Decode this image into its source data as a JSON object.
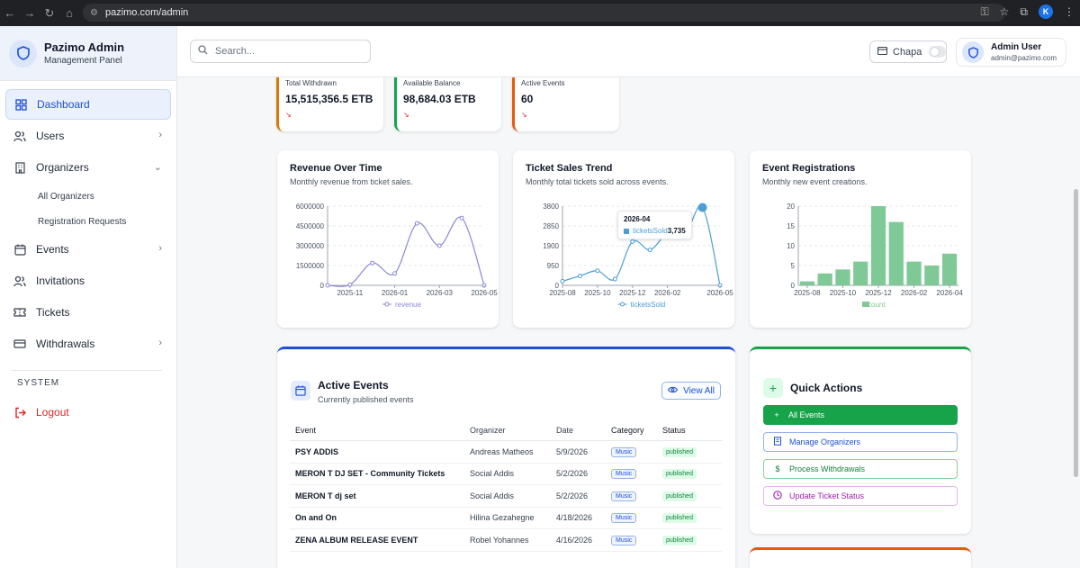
{
  "browser": {
    "url": "pazimo.com/admin",
    "profile_initial": "K"
  },
  "sidebar": {
    "brand_title": "Pazimo Admin",
    "brand_subtitle": "Management Panel",
    "items": [
      {
        "label": "Dashboard",
        "icon": "grid-icon"
      },
      {
        "label": "Users",
        "icon": "users-icon"
      },
      {
        "label": "Organizers",
        "icon": "building-icon"
      },
      {
        "label": "Events",
        "icon": "calendar-icon"
      },
      {
        "label": "Invitations",
        "icon": "user-plus-icon"
      },
      {
        "label": "Tickets",
        "icon": "ticket-icon"
      },
      {
        "label": "Withdrawals",
        "icon": "wallet-icon"
      }
    ],
    "organizer_subitems": [
      "All Organizers",
      "Registration Requests"
    ],
    "system_label": "SYSTEM",
    "logout_label": "Logout"
  },
  "topbar": {
    "search_placeholder": "Search...",
    "chapa_label": "Chapa",
    "user_name": "Admin User",
    "user_email": "admin@pazimo.com"
  },
  "stats": [
    {
      "label": "Total Withdrawn",
      "value": "15,515,356.5 ETB",
      "color": "#d97706"
    },
    {
      "label": "Available Balance",
      "value": "98,684.03 ETB",
      "color": "#16a34a"
    },
    {
      "label": "Active Events",
      "value": "60",
      "color": "#ea580c"
    }
  ],
  "charts": {
    "revenue": {
      "title": "Revenue Over Time",
      "subtitle": "Monthly revenue from ticket sales."
    },
    "tickets": {
      "title": "Ticket Sales Trend",
      "subtitle": "Monthly total tickets sold across events."
    },
    "registrations": {
      "title": "Event Registrations",
      "subtitle": "Monthly new event creations."
    }
  },
  "tooltip": {
    "title": "2026-04",
    "series": "ticketsSold",
    "value": "3,735"
  },
  "chart_data": [
    {
      "type": "line",
      "title": "Revenue Over Time",
      "x": [
        "2025-10",
        "2025-11",
        "2025-12",
        "2026-01",
        "2026-02",
        "2026-03",
        "2026-04",
        "2026-05"
      ],
      "xticks": [
        "2025-11",
        "2026-01",
        "2026-03",
        "2026-05"
      ],
      "yticks": [
        "0",
        "1500000",
        "3000000",
        "4500000",
        "6000000"
      ],
      "ylim": [
        0,
        6000000
      ],
      "series": [
        {
          "name": "revenue",
          "values": [
            0,
            50000,
            1700000,
            900000,
            4700000,
            3000000,
            5100000,
            0
          ]
        }
      ],
      "color": "#8b88d6"
    },
    {
      "type": "line",
      "title": "Ticket Sales Trend",
      "x": [
        "2025-08",
        "2025-09",
        "2025-10",
        "2025-11",
        "2025-12",
        "2026-01",
        "2026-02",
        "2026-03",
        "2026-04",
        "2026-05"
      ],
      "xticks": [
        "2025-08",
        "2025-10",
        "2025-12",
        "2026-02",
        "2026-05"
      ],
      "yticks": [
        "0",
        "950",
        "1900",
        "2850",
        "3800"
      ],
      "ylim": [
        0,
        3800
      ],
      "series": [
        {
          "name": "ticketsSold",
          "values": [
            200,
            450,
            700,
            300,
            2100,
            1700,
            2500,
            2400,
            3735,
            0
          ]
        }
      ],
      "color": "#4b9fd6"
    },
    {
      "type": "bar",
      "title": "Event Registrations",
      "categories": [
        "2025-08",
        "2025-09",
        "2025-10",
        "2025-11",
        "2025-12",
        "2026-01",
        "2026-02",
        "2026-03",
        "2026-04"
      ],
      "xticks": [
        "2025-08",
        "2025-10",
        "2025-12",
        "2026-02",
        "2026-04"
      ],
      "yticks": [
        "0",
        "5",
        "10",
        "15",
        "20"
      ],
      "ylim": [
        0,
        20
      ],
      "series": [
        {
          "name": "count",
          "values": [
            1,
            3,
            4,
            6,
            20,
            16,
            6,
            5,
            8
          ]
        }
      ],
      "color": "#7fc996"
    }
  ],
  "active_events": {
    "title": "Active Events",
    "subtitle": "Currently published events",
    "view_all": "View All",
    "columns": [
      "Event",
      "Organizer",
      "Date",
      "Category",
      "Status"
    ],
    "rows": [
      {
        "event": "PSY ADDIS",
        "organizer": "Andreas Matheos",
        "date": "5/9/2026",
        "category": "Music",
        "status": "published"
      },
      {
        "event": "MERON T DJ SET - Community Tickets",
        "organizer": "Social Addis",
        "date": "5/2/2026",
        "category": "Music",
        "status": "published"
      },
      {
        "event": "MERON T dj set",
        "organizer": "Social Addis",
        "date": "5/2/2026",
        "category": "Music",
        "status": "published"
      },
      {
        "event": "On and On",
        "organizer": "Hilina Gezahegne",
        "date": "4/18/2026",
        "category": "Music",
        "status": "published"
      },
      {
        "event": "ZENA ALBUM RELEASE EVENT",
        "organizer": "Robel Yohannes",
        "date": "4/16/2026",
        "category": "Music",
        "status": "published"
      }
    ]
  },
  "quick_actions": {
    "title": "Quick Actions",
    "buttons": [
      {
        "label": "All Events",
        "icon": "plus-icon",
        "color": "#16a34a"
      },
      {
        "label": "Manage Organizers",
        "icon": "building-icon",
        "color": "#1d4ed8"
      },
      {
        "label": "Process Withdrawals",
        "icon": "dollar-icon",
        "color": "#16a34a"
      },
      {
        "label": "Update Ticket Status",
        "icon": "clock-icon",
        "color": "#a21caf"
      }
    ]
  }
}
